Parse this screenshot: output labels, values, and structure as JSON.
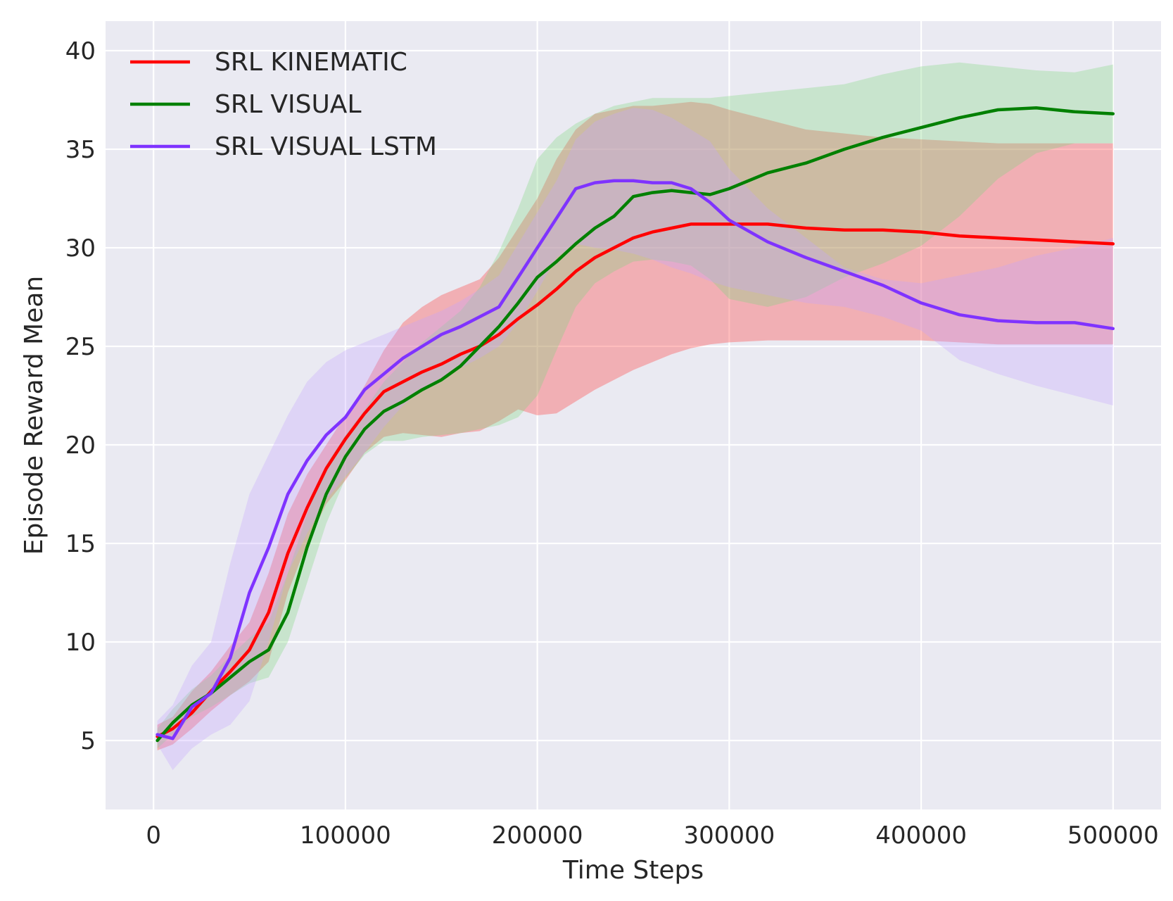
{
  "chart_data": {
    "type": "line",
    "title": "",
    "xlabel": "Time Steps",
    "ylabel": "Episode Reward Mean",
    "xlim": [
      -25000,
      525000
    ],
    "ylim": [
      1.5,
      41.5
    ],
    "xticks": [
      0,
      100000,
      200000,
      300000,
      400000,
      500000
    ],
    "xtick_labels": [
      "0",
      "100000",
      "200000",
      "300000",
      "400000",
      "500000"
    ],
    "yticks": [
      5,
      10,
      15,
      20,
      25,
      30,
      35,
      40
    ],
    "ytick_labels": [
      "5",
      "10",
      "15",
      "20",
      "25",
      "30",
      "35",
      "40"
    ],
    "grid": true,
    "legend_position": "top-left",
    "x": [
      2000,
      10000,
      20000,
      30000,
      40000,
      50000,
      60000,
      70000,
      80000,
      90000,
      100000,
      110000,
      120000,
      130000,
      140000,
      150000,
      160000,
      170000,
      180000,
      190000,
      200000,
      210000,
      220000,
      230000,
      240000,
      250000,
      260000,
      270000,
      280000,
      290000,
      300000,
      320000,
      340000,
      360000,
      380000,
      400000,
      420000,
      440000,
      460000,
      480000,
      500000
    ],
    "series": [
      {
        "name": "SRL KINEMATIC",
        "color": "#ff0000",
        "band_color": "#ff3333",
        "mean": [
          5.2,
          5.6,
          6.4,
          7.5,
          8.5,
          9.6,
          11.5,
          14.5,
          16.8,
          18.8,
          20.3,
          21.6,
          22.7,
          23.2,
          23.7,
          24.1,
          24.6,
          25.0,
          25.6,
          26.4,
          27.1,
          27.9,
          28.8,
          29.5,
          30.0,
          30.5,
          30.8,
          31.0,
          31.2,
          31.2,
          31.2,
          31.2,
          31.0,
          30.9,
          30.9,
          30.8,
          30.6,
          30.5,
          30.4,
          30.3,
          30.2
        ],
        "upper": [
          5.8,
          6.2,
          7.5,
          8.5,
          9.8,
          11.0,
          13.5,
          16.5,
          18.5,
          20.0,
          21.5,
          23.0,
          24.8,
          26.2,
          27.0,
          27.6,
          28.0,
          28.4,
          29.5,
          31.0,
          32.5,
          34.5,
          36.0,
          36.8,
          37.0,
          37.2,
          37.2,
          37.3,
          37.4,
          37.3,
          37.0,
          36.5,
          36.0,
          35.8,
          35.6,
          35.5,
          35.4,
          35.3,
          35.3,
          35.3,
          35.3
        ],
        "lower": [
          4.5,
          4.8,
          5.6,
          6.5,
          7.3,
          8.0,
          9.0,
          12.5,
          15.0,
          17.0,
          18.2,
          19.6,
          20.4,
          20.6,
          20.5,
          20.4,
          20.6,
          20.7,
          21.2,
          21.8,
          21.5,
          21.6,
          22.2,
          22.8,
          23.3,
          23.8,
          24.2,
          24.6,
          24.9,
          25.1,
          25.2,
          25.3,
          25.3,
          25.3,
          25.3,
          25.3,
          25.2,
          25.1,
          25.1,
          25.1,
          25.1
        ]
      },
      {
        "name": "SRL VISUAL",
        "color": "#008000",
        "band_color": "#7fd67f",
        "mean": [
          5.0,
          5.9,
          6.8,
          7.4,
          8.2,
          9.0,
          9.6,
          11.5,
          14.8,
          17.5,
          19.4,
          20.8,
          21.7,
          22.2,
          22.8,
          23.3,
          24.0,
          25.0,
          26.0,
          27.2,
          28.5,
          29.3,
          30.2,
          31.0,
          31.6,
          32.6,
          32.8,
          32.9,
          32.8,
          32.7,
          33.0,
          33.8,
          34.3,
          35.0,
          35.6,
          36.1,
          36.6,
          37.0,
          37.1,
          36.9,
          36.8
        ],
        "upper": [
          5.6,
          6.6,
          7.6,
          8.3,
          9.3,
          10.2,
          11.0,
          13.5,
          16.5,
          19.0,
          20.5,
          21.8,
          23.2,
          24.2,
          25.2,
          26.0,
          26.8,
          28.0,
          29.8,
          32.0,
          34.5,
          35.6,
          36.3,
          36.8,
          37.2,
          37.4,
          37.6,
          37.6,
          37.6,
          37.6,
          37.7,
          37.9,
          38.1,
          38.3,
          38.8,
          39.2,
          39.4,
          39.2,
          39.0,
          38.9,
          39.3
        ],
        "lower": [
          4.6,
          5.3,
          6.2,
          6.7,
          7.3,
          7.9,
          8.2,
          10.0,
          13.0,
          16.0,
          18.3,
          19.5,
          20.2,
          20.2,
          20.4,
          20.5,
          20.6,
          20.8,
          21.0,
          21.4,
          22.5,
          24.8,
          27.0,
          28.2,
          28.8,
          29.3,
          29.4,
          29.3,
          29.1,
          28.4,
          27.4,
          27.0,
          27.5,
          28.5,
          29.2,
          30.1,
          31.6,
          33.5,
          34.8,
          35.3,
          35.3
        ]
      },
      {
        "name": "SRL VISUAL LSTM",
        "color": "#7f33ff",
        "band_color": "#c4a6ff",
        "mean": [
          5.3,
          5.1,
          6.7,
          7.4,
          9.2,
          12.5,
          14.8,
          17.5,
          19.2,
          20.5,
          21.4,
          22.8,
          23.6,
          24.4,
          25.0,
          25.6,
          26.0,
          26.5,
          27.0,
          28.5,
          30.0,
          31.5,
          33.0,
          33.3,
          33.4,
          33.4,
          33.3,
          33.3,
          33.0,
          32.3,
          31.4,
          30.3,
          29.5,
          28.8,
          28.1,
          27.2,
          26.6,
          26.3,
          26.2,
          26.2,
          25.9
        ],
        "upper": [
          6.0,
          6.8,
          8.8,
          10.0,
          14.0,
          17.5,
          19.5,
          21.5,
          23.2,
          24.2,
          24.8,
          25.2,
          25.6,
          26.0,
          26.4,
          26.8,
          27.3,
          27.9,
          28.6,
          30.2,
          31.8,
          33.4,
          35.5,
          36.4,
          36.8,
          37.1,
          37.0,
          36.6,
          36.0,
          35.4,
          34.0,
          32.0,
          30.5,
          29.0,
          28.4,
          28.2,
          28.6,
          29.0,
          29.6,
          30.0,
          30.5
        ],
        "lower": [
          4.8,
          3.5,
          4.6,
          5.3,
          5.8,
          7.0,
          10.0,
          13.5,
          15.5,
          17.2,
          18.4,
          19.6,
          20.9,
          22.0,
          22.8,
          23.4,
          23.9,
          24.4,
          25.0,
          26.2,
          27.8,
          29.5,
          30.2,
          30.0,
          29.9,
          29.7,
          29.4,
          29.0,
          28.7,
          28.3,
          28.0,
          27.6,
          27.2,
          27.0,
          26.5,
          25.8,
          24.3,
          23.6,
          23.0,
          22.5,
          22.0
        ]
      }
    ]
  }
}
